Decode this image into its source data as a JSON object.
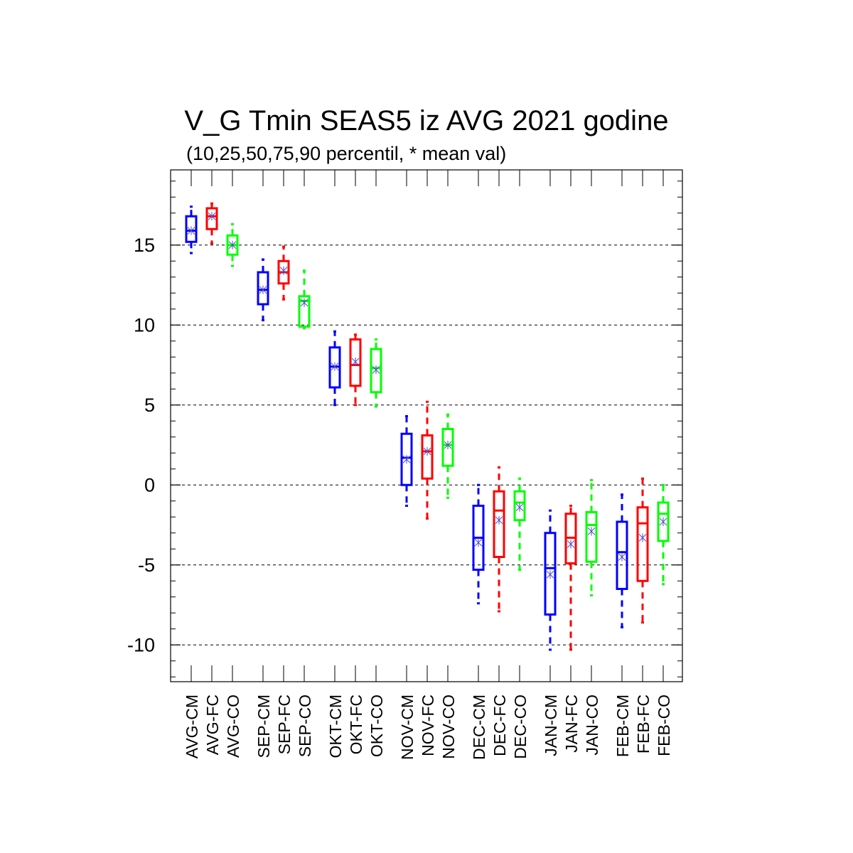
{
  "chart_data": {
    "type": "box",
    "title": "V_G Tmin SEAS5 iz AVG 2021 godine",
    "subtitle": "(10,25,50,75,90 percentil, * mean val)",
    "ylim": [
      -12.3,
      19.7
    ],
    "yticks": [
      -10,
      -5,
      0,
      5,
      10,
      15
    ],
    "grid": "horizontal dashed at major ticks",
    "categories": [
      "AVG-CM",
      "AVG-FC",
      "AVG-CO",
      "SEP-CM",
      "SEP-FC",
      "SEP-CO",
      "OKT-CM",
      "OKT-FC",
      "OKT-CO",
      "NOV-CM",
      "NOV-FC",
      "NOV-CO",
      "DEC-CM",
      "DEC-FC",
      "DEC-CO",
      "JAN-CM",
      "JAN-FC",
      "JAN-CO",
      "FEB-CM",
      "FEB-FC",
      "FEB-CO"
    ],
    "boxes": [
      {
        "label": "AVG-CM",
        "p10": 14.5,
        "p25": 15.2,
        "p50": 15.9,
        "p75": 16.8,
        "p90": 17.4,
        "mean": 15.9,
        "color": "#0000ff"
      },
      {
        "label": "AVG-FC",
        "p10": 15.1,
        "p25": 16.0,
        "p50": 16.8,
        "p75": 17.3,
        "p90": 17.6,
        "mean": 16.8,
        "color": "#ff0000"
      },
      {
        "label": "AVG-CO",
        "p10": 13.7,
        "p25": 14.4,
        "p50": 15.0,
        "p75": 15.6,
        "p90": 16.3,
        "mean": 15.0,
        "color": "#00ff00"
      },
      {
        "label": "SEP-CM",
        "p10": 10.3,
        "p25": 11.3,
        "p50": 12.2,
        "p75": 13.3,
        "p90": 14.1,
        "mean": 12.2,
        "color": "#0000ff"
      },
      {
        "label": "SEP-FC",
        "p10": 11.6,
        "p25": 12.6,
        "p50": 13.3,
        "p75": 14.0,
        "p90": 14.9,
        "mean": 13.4,
        "color": "#ff0000"
      },
      {
        "label": "SEP-CO",
        "p10": 9.8,
        "p25": 9.9,
        "p50": 11.5,
        "p75": 11.8,
        "p90": 13.4,
        "mean": 11.4,
        "color": "#00ff00"
      },
      {
        "label": "OKT-CM",
        "p10": 5.0,
        "p25": 6.1,
        "p50": 7.4,
        "p75": 8.6,
        "p90": 9.6,
        "mean": 7.4,
        "color": "#0000ff"
      },
      {
        "label": "OKT-FC",
        "p10": 5.0,
        "p25": 6.2,
        "p50": 7.5,
        "p75": 9.1,
        "p90": 9.4,
        "mean": 7.7,
        "color": "#ff0000"
      },
      {
        "label": "OKT-CO",
        "p10": 4.9,
        "p25": 5.8,
        "p50": 7.3,
        "p75": 8.5,
        "p90": 9.1,
        "mean": 7.2,
        "color": "#00ff00"
      },
      {
        "label": "NOV-CM",
        "p10": -1.3,
        "p25": 0.0,
        "p50": 1.7,
        "p75": 3.2,
        "p90": 4.3,
        "mean": 1.6,
        "color": "#0000ff"
      },
      {
        "label": "NOV-FC",
        "p10": -2.1,
        "p25": 0.4,
        "p50": 2.1,
        "p75": 3.1,
        "p90": 5.2,
        "mean": 2.1,
        "color": "#ff0000"
      },
      {
        "label": "NOV-CO",
        "p10": -0.8,
        "p25": 1.2,
        "p50": 2.5,
        "p75": 3.5,
        "p90": 4.4,
        "mean": 2.5,
        "color": "#00ff00"
      },
      {
        "label": "DEC-CM",
        "p10": -7.4,
        "p25": -5.3,
        "p50": -3.3,
        "p75": -1.3,
        "p90": 0.0,
        "mean": -3.6,
        "color": "#0000ff"
      },
      {
        "label": "DEC-FC",
        "p10": -7.9,
        "p25": -4.5,
        "p50": -1.6,
        "p75": -0.4,
        "p90": 1.1,
        "mean": -2.2,
        "color": "#ff0000"
      },
      {
        "label": "DEC-CO",
        "p10": -5.3,
        "p25": -2.2,
        "p50": -1.1,
        "p75": -0.4,
        "p90": 0.4,
        "mean": -1.4,
        "color": "#00ff00"
      },
      {
        "label": "JAN-CM",
        "p10": -10.3,
        "p25": -8.1,
        "p50": -5.2,
        "p75": -3.0,
        "p90": -1.6,
        "mean": -5.6,
        "color": "#0000ff"
      },
      {
        "label": "JAN-FC",
        "p10": -10.3,
        "p25": -4.9,
        "p50": -3.3,
        "p75": -1.8,
        "p90": -1.3,
        "mean": -3.7,
        "color": "#ff0000"
      },
      {
        "label": "JAN-CO",
        "p10": -6.9,
        "p25": -4.8,
        "p50": -2.5,
        "p75": -1.7,
        "p90": 0.3,
        "mean": -2.9,
        "color": "#00ff00"
      },
      {
        "label": "FEB-CM",
        "p10": -8.9,
        "p25": -6.5,
        "p50": -4.2,
        "p75": -2.3,
        "p90": -0.6,
        "mean": -4.5,
        "color": "#0000ff"
      },
      {
        "label": "FEB-FC",
        "p10": -8.6,
        "p25": -6.0,
        "p50": -2.4,
        "p75": -1.4,
        "p90": 0.4,
        "mean": -3.3,
        "color": "#ff0000"
      },
      {
        "label": "FEB-CO",
        "p10": -6.2,
        "p25": -3.5,
        "p50": -1.8,
        "p75": -1.1,
        "p90": 0.0,
        "mean": -2.3,
        "color": "#00ff00"
      }
    ],
    "mean_marker_color": "#4d4dcc"
  }
}
